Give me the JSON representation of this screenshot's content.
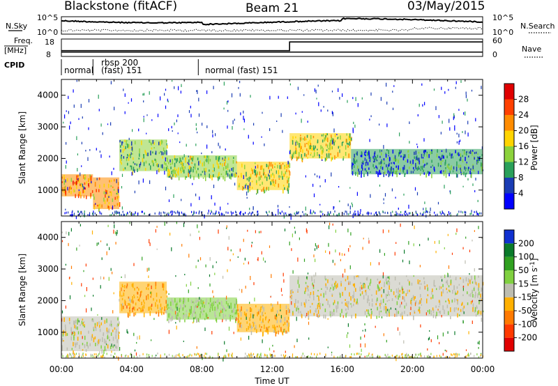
{
  "header": {
    "station": "Blackstone (fitACF)",
    "beam": "Beam 21",
    "date": "03/May/2015"
  },
  "labels": {
    "nsky": "N.Sky",
    "nsearch": "N.Search",
    "freq_line1": "Freq.",
    "freq_line2": "[MHz]",
    "nave": "Nave",
    "cpid": "CPID"
  },
  "noise_panel": {
    "left_ticks": [
      "10^5",
      "10^0"
    ],
    "right_ticks": [
      "10^5",
      "10^0"
    ]
  },
  "freq_panel": {
    "left_ticks": [
      "18",
      "8"
    ],
    "right_ticks": [
      "60",
      "0"
    ],
    "freq_mhz_start": 10.5,
    "freq_mhz_end": 10.5,
    "nave_step_hour": 13.0,
    "nave_before": 20,
    "nave_after": 50
  },
  "cpid_panel": {
    "segments": [
      {
        "start_hour": 0.0,
        "label": "normal"
      },
      {
        "start_hour": 1.8,
        "label": "rbsp 200\n(fast) 151"
      },
      {
        "start_hour": 7.8,
        "label": "normal (fast)  151"
      }
    ],
    "segment_line1": "normal",
    "segment_line2a": "rbsp 200",
    "segment_line2b": "(fast)  151",
    "segment_line3": "normal (fast)  151"
  },
  "axes": {
    "x_label": "Time UT",
    "x_ticks": [
      "00:00",
      "04:00",
      "08:00",
      "12:00",
      "16:00",
      "20:00",
      "00:00"
    ],
    "x_range_hours": [
      0,
      24
    ],
    "y_label": "Slant Range [km]",
    "y_ticks": [
      "1000",
      "2000",
      "3000",
      "4000"
    ],
    "y_range_km": [
      180,
      4500
    ]
  },
  "power_colorbar": {
    "label": "Power [dB]",
    "ticks": [
      "4",
      "8",
      "12",
      "16",
      "20",
      "24",
      "28"
    ],
    "colors": [
      "#0000ff",
      "#1a3cb4",
      "#2aa05a",
      "#8cd23c",
      "#ffd400",
      "#ff8c00",
      "#ff4000",
      "#e00000"
    ]
  },
  "velocity_colorbar": {
    "label": "Velocity [m s",
    "label_sup": "-1",
    "label_end": "]",
    "ticks": [
      "200",
      "100",
      "50",
      "15",
      "-15",
      "-50",
      "-100",
      "-200"
    ],
    "colors": [
      "#1030d0",
      "#0a7a2a",
      "#30a020",
      "#80d040",
      "#bdbdb0",
      "#ffb000",
      "#ff7a00",
      "#ff3a00",
      "#e00000"
    ]
  },
  "chart_data": {
    "type": "heatmap",
    "title": "Blackstone (fitACF)",
    "xlabel": "Time UT",
    "ylabel": "Slant Range [km]",
    "xlim": [
      0,
      24
    ],
    "ylim": [
      180,
      4500
    ],
    "series": [
      {
        "name": "Power [dB]",
        "bands": [
          {
            "t0": 0.0,
            "t1": 1.8,
            "r0": 800,
            "r1": 1500,
            "value": 22
          },
          {
            "t0": 1.8,
            "t1": 3.3,
            "r0": 400,
            "r1": 1400,
            "value": 20
          },
          {
            "t0": 3.3,
            "t1": 6.0,
            "r0": 1600,
            "r1": 2600,
            "value": 12
          },
          {
            "t0": 6.0,
            "t1": 10.0,
            "r0": 1400,
            "r1": 2100,
            "value": 14
          },
          {
            "t0": 10.0,
            "t1": 13.0,
            "r0": 1000,
            "r1": 1900,
            "value": 16
          },
          {
            "t0": 13.0,
            "t1": 16.5,
            "r0": 2000,
            "r1": 2800,
            "value": 16
          },
          {
            "t0": 16.5,
            "t1": 24.0,
            "r0": 1500,
            "r1": 2300,
            "value": 8
          }
        ]
      },
      {
        "name": "Velocity [m s-1]",
        "bands": [
          {
            "t0": 0.0,
            "t1": 3.3,
            "r0": 400,
            "r1": 1500,
            "value": 0
          },
          {
            "t0": 3.3,
            "t1": 6.0,
            "r0": 1600,
            "r1": 2600,
            "value": -40
          },
          {
            "t0": 6.0,
            "t1": 10.0,
            "r0": 1400,
            "r1": 2100,
            "value": 20
          },
          {
            "t0": 10.0,
            "t1": 13.0,
            "r0": 1000,
            "r1": 1900,
            "value": -30
          },
          {
            "t0": 13.0,
            "t1": 24.0,
            "r0": 1500,
            "r1": 2800,
            "value": 0
          }
        ]
      }
    ]
  }
}
